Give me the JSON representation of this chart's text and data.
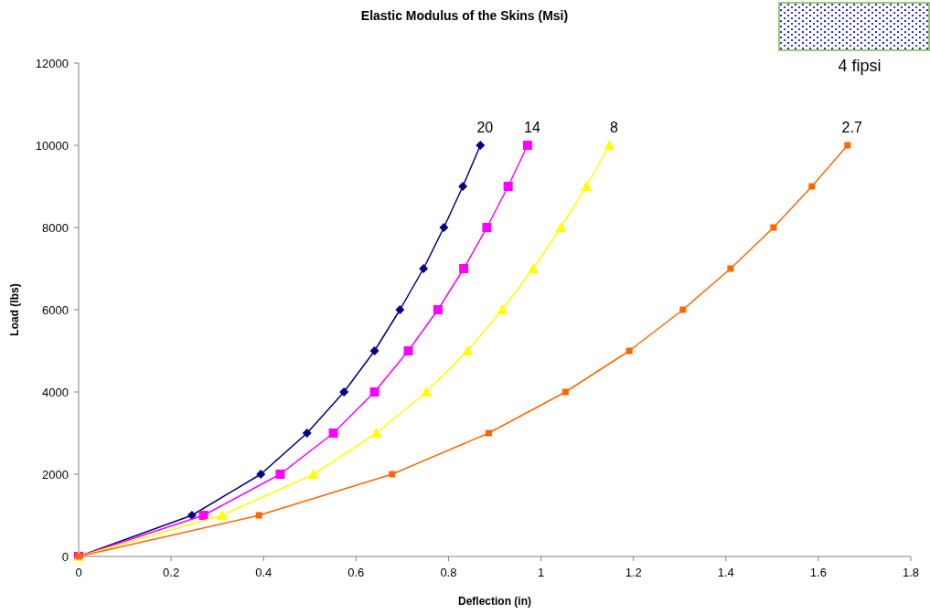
{
  "chart_data": {
    "type": "line",
    "title": "Elastic Modulus of the Skins (Msi)",
    "xlabel": "Deflection (in)",
    "ylabel": "Load (lbs)",
    "xlim": [
      0,
      1.8
    ],
    "xticks": [
      0,
      0.2,
      0.4,
      0.6,
      0.8,
      1,
      1.2,
      1.4,
      1.6,
      1.8
    ],
    "ylim": [
      0,
      12000
    ],
    "yticks": [
      0,
      2000,
      4000,
      6000,
      8000,
      10000,
      12000
    ],
    "annotations": [
      "4 fipsi"
    ],
    "series": [
      {
        "name": "20",
        "color": "#000080",
        "marker": "diamond",
        "x": [
          0,
          0.245,
          0.394,
          0.494,
          0.574,
          0.64,
          0.695,
          0.746,
          0.79,
          0.831,
          0.869
        ],
        "values": [
          0,
          1000,
          2000,
          3000,
          4000,
          5000,
          6000,
          7000,
          8000,
          9000,
          10000
        ]
      },
      {
        "name": "14",
        "color": "#ff00ff",
        "marker": "square",
        "x": [
          0,
          0.27,
          0.436,
          0.551,
          0.64,
          0.713,
          0.777,
          0.833,
          0.883,
          0.929,
          0.971
        ],
        "values": [
          0,
          1000,
          2000,
          3000,
          4000,
          5000,
          6000,
          7000,
          8000,
          9000,
          10000
        ]
      },
      {
        "name": "8",
        "color": "#ffff00",
        "marker": "triangle",
        "x": [
          0,
          0.31,
          0.508,
          0.644,
          0.752,
          0.841,
          0.916,
          0.983,
          1.043,
          1.098,
          1.148
        ],
        "values": [
          0,
          1000,
          2000,
          3000,
          4000,
          5000,
          6000,
          7000,
          8000,
          9000,
          10000
        ]
      },
      {
        "name": "2.7",
        "color": "#ff6600",
        "marker": "square",
        "x": [
          0,
          0.39,
          0.678,
          0.887,
          1.053,
          1.191,
          1.307,
          1.41,
          1.503,
          1.586,
          1.663
        ],
        "values": [
          0,
          1000,
          2000,
          3000,
          4000,
          5000,
          6000,
          7000,
          8000,
          9000,
          10000
        ]
      }
    ]
  }
}
